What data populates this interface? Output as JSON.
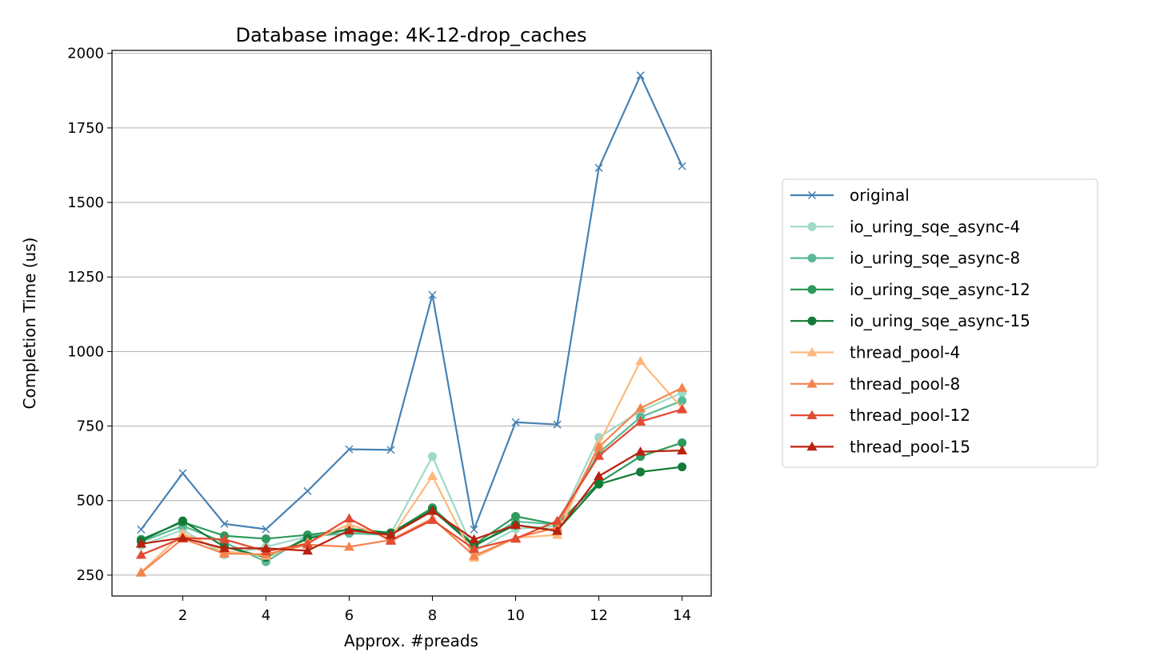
{
  "chart_data": {
    "type": "line",
    "title": "Database image: 4K-12-drop_caches",
    "xlabel": "Approx. #preads",
    "ylabel": "Completion Time (us)",
    "xlim": [
      0.3,
      14.7
    ],
    "ylim": [
      180,
      2010
    ],
    "xticks": [
      2,
      4,
      6,
      8,
      10,
      12,
      14
    ],
    "yticks": [
      250,
      500,
      750,
      1000,
      1250,
      1500,
      1750,
      2000
    ],
    "grid": "horizontal",
    "legend_position": "right",
    "x": [
      1,
      2,
      3,
      4,
      5,
      6,
      7,
      8,
      9,
      10,
      11,
      12,
      13,
      14
    ],
    "series": [
      {
        "name": "original",
        "color": "#4682b4",
        "marker": "x",
        "values": [
          403,
          592,
          422,
          404,
          532,
          672,
          670,
          1190,
          403,
          763,
          755,
          1616,
          1926,
          1622
        ]
      },
      {
        "name": "io_uring_sqe_async-4",
        "color": "#9fd9c8",
        "marker": "circle",
        "values": [
          350,
          402,
          318,
          345,
          380,
          392,
          388,
          648,
          330,
          405,
          415,
          712,
          800,
          862
        ]
      },
      {
        "name": "io_uring_sqe_async-8",
        "color": "#5bb897",
        "marker": "circle",
        "values": [
          362,
          415,
          360,
          295,
          380,
          390,
          385,
          470,
          345,
          430,
          420,
          660,
          780,
          835
        ]
      },
      {
        "name": "io_uring_sqe_async-12",
        "color": "#2e9a5c",
        "marker": "circle",
        "values": [
          370,
          428,
          382,
          372,
          385,
          402,
          390,
          476,
          352,
          447,
          420,
          560,
          648,
          694
        ]
      },
      {
        "name": "io_uring_sqe_async-15",
        "color": "#137b36",
        "marker": "circle",
        "values": [
          365,
          432,
          345,
          310,
          372,
          405,
          392,
          468,
          350,
          418,
          400,
          555,
          596,
          613
        ]
      },
      {
        "name": "thread_pool-4",
        "color": "#fdb97d",
        "marker": "triangle",
        "values": [
          260,
          390,
          330,
          315,
          360,
          420,
          375,
          582,
          308,
          375,
          385,
          690,
          968,
          810
        ]
      },
      {
        "name": "thread_pool-8",
        "color": "#f4844e",
        "marker": "triangle",
        "values": [
          258,
          372,
          322,
          320,
          352,
          345,
          368,
          440,
          315,
          375,
          410,
          680,
          810,
          878
        ]
      },
      {
        "name": "thread_pool-12",
        "color": "#e34a33",
        "marker": "triangle",
        "values": [
          318,
          375,
          370,
          330,
          355,
          440,
          365,
          435,
          338,
          372,
          432,
          650,
          765,
          806
        ]
      },
      {
        "name": "thread_pool-15",
        "color": "#b8220f",
        "marker": "triangle",
        "values": [
          355,
          375,
          340,
          340,
          332,
          400,
          385,
          465,
          370,
          418,
          398,
          582,
          664,
          668
        ]
      }
    ]
  }
}
